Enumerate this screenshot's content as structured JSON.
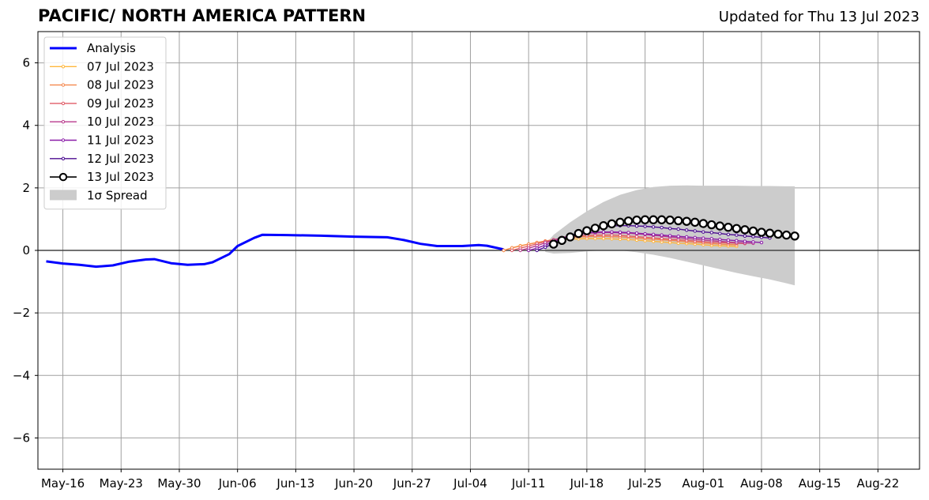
{
  "page": {
    "title": "PACIFIC/ NORTH AMERICA PATTERN",
    "updated": "Updated for Thu 13 Jul 2023"
  },
  "chart_data": {
    "type": "line",
    "title": "PACIFIC/ NORTH AMERICA PATTERN",
    "subtitle": "Updated for Thu 13 Jul 2023",
    "xlim": [
      "2023-05-13",
      "2023-08-27"
    ],
    "ylim": [
      -7,
      7
    ],
    "x_ticks": [
      "2023-05-16",
      "2023-05-23",
      "2023-05-30",
      "2023-06-06",
      "2023-06-13",
      "2023-06-20",
      "2023-06-27",
      "2023-07-04",
      "2023-07-11",
      "2023-07-18",
      "2023-07-25",
      "2023-08-01",
      "2023-08-08",
      "2023-08-15",
      "2023-08-22"
    ],
    "x_tick_labels": [
      "May-16",
      "May-23",
      "May-30",
      "Jun-06",
      "Jun-13",
      "Jun-20",
      "Jun-27",
      "Jul-04",
      "Jul-11",
      "Jul-18",
      "Jul-25",
      "Aug-01",
      "Aug-08",
      "Aug-15",
      "Aug-22"
    ],
    "y_ticks": [
      -6,
      -4,
      -2,
      0,
      2,
      4,
      6
    ],
    "y_tick_labels": [
      "−6",
      "−4",
      "−2",
      "0",
      "2",
      "4",
      "6"
    ],
    "grid": true,
    "legend_position": "top-left",
    "zero_line": true,
    "analysis": {
      "name": "Analysis",
      "color": "#0000ff",
      "x": [
        "2023-05-14",
        "2023-05-16",
        "2023-05-18",
        "2023-05-20",
        "2023-05-22",
        "2023-05-24",
        "2023-05-26",
        "2023-05-27",
        "2023-05-29",
        "2023-05-31",
        "2023-06-02",
        "2023-06-03",
        "2023-06-05",
        "2023-06-06",
        "2023-06-08",
        "2023-06-09",
        "2023-06-12",
        "2023-06-16",
        "2023-06-20",
        "2023-06-24",
        "2023-06-26",
        "2023-06-28",
        "2023-06-30",
        "2023-07-01",
        "2023-07-03",
        "2023-07-05",
        "2023-07-06",
        "2023-07-08"
      ],
      "y": [
        -0.35,
        -0.42,
        -0.46,
        -0.52,
        -0.48,
        -0.36,
        -0.29,
        -0.28,
        -0.41,
        -0.46,
        -0.44,
        -0.38,
        -0.12,
        0.14,
        0.4,
        0.5,
        0.49,
        0.47,
        0.44,
        0.42,
        0.33,
        0.21,
        0.14,
        0.14,
        0.14,
        0.17,
        0.15,
        0.03
      ]
    },
    "forecasts": [
      {
        "name": "07 Jul 2023",
        "color": "#ffb73d",
        "start": "2023-07-08",
        "y": [
          0.0,
          0.08,
          0.15,
          0.2,
          0.25,
          0.29,
          0.32,
          0.34,
          0.36,
          0.37,
          0.38,
          0.38,
          0.38,
          0.37,
          0.36,
          0.35,
          0.33,
          0.31,
          0.29,
          0.27,
          0.25,
          0.23,
          0.22,
          0.2,
          0.18,
          0.16,
          0.15,
          0.14,
          0.13
        ]
      },
      {
        "name": "08 Jul 2023",
        "color": "#f5884e",
        "start": "2023-07-08",
        "y": [
          0.0,
          0.08,
          0.14,
          0.2,
          0.25,
          0.3,
          0.34,
          0.38,
          0.41,
          0.43,
          0.44,
          0.45,
          0.45,
          0.44,
          0.43,
          0.42,
          0.4,
          0.38,
          0.36,
          0.34,
          0.32,
          0.3,
          0.28,
          0.26,
          0.24,
          0.22,
          0.2,
          0.19,
          0.18
        ]
      },
      {
        "name": "09 Jul 2023",
        "color": "#e05c67",
        "start": "2023-07-09",
        "y": [
          0.0,
          0.07,
          0.14,
          0.21,
          0.28,
          0.34,
          0.39,
          0.43,
          0.46,
          0.48,
          0.49,
          0.49,
          0.49,
          0.48,
          0.46,
          0.44,
          0.42,
          0.4,
          0.38,
          0.36,
          0.34,
          0.32,
          0.3,
          0.28,
          0.26,
          0.25,
          0.24,
          0.23,
          0.22
        ]
      },
      {
        "name": "10 Jul 2023",
        "color": "#b83a8c",
        "start": "2023-07-10",
        "y": [
          0.0,
          0.07,
          0.15,
          0.24,
          0.33,
          0.41,
          0.47,
          0.51,
          0.54,
          0.56,
          0.57,
          0.57,
          0.56,
          0.55,
          0.53,
          0.51,
          0.48,
          0.46,
          0.43,
          0.41,
          0.38,
          0.36,
          0.33,
          0.31,
          0.29,
          0.27,
          0.25,
          0.24,
          0.23
        ]
      },
      {
        "name": "11 Jul 2023",
        "color": "#8a1ca8",
        "start": "2023-07-11",
        "y": [
          0.0,
          0.07,
          0.17,
          0.28,
          0.38,
          0.46,
          0.52,
          0.56,
          0.58,
          0.59,
          0.59,
          0.58,
          0.57,
          0.55,
          0.53,
          0.51,
          0.49,
          0.47,
          0.45,
          0.43,
          0.41,
          0.39,
          0.37,
          0.35,
          0.33,
          0.31,
          0.29,
          0.27,
          0.25
        ]
      },
      {
        "name": "12 Jul 2023",
        "color": "#4b0c91",
        "start": "2023-07-12",
        "y": [
          0.0,
          0.1,
          0.22,
          0.35,
          0.47,
          0.57,
          0.65,
          0.71,
          0.75,
          0.78,
          0.79,
          0.79,
          0.78,
          0.77,
          0.75,
          0.73,
          0.7,
          0.68,
          0.65,
          0.62,
          0.59,
          0.57,
          0.54,
          0.51,
          0.49,
          0.46,
          0.44,
          0.42,
          0.4
        ]
      },
      {
        "name": "13 Jul 2023",
        "color": "#000000",
        "start": "2023-07-14",
        "y": [
          0.2,
          0.32,
          0.43,
          0.54,
          0.63,
          0.71,
          0.79,
          0.85,
          0.9,
          0.94,
          0.97,
          0.98,
          0.98,
          0.98,
          0.97,
          0.95,
          0.93,
          0.9,
          0.86,
          0.82,
          0.78,
          0.74,
          0.7,
          0.66,
          0.62,
          0.58,
          0.55,
          0.52,
          0.49,
          0.46
        ]
      }
    ],
    "spread": {
      "name": "1σ Spread",
      "color": "#cccccc",
      "x": [
        "2023-07-13",
        "2023-07-14",
        "2023-07-16",
        "2023-07-18",
        "2023-07-20",
        "2023-07-22",
        "2023-07-24",
        "2023-07-26",
        "2023-07-28",
        "2023-07-30",
        "2023-08-01",
        "2023-08-03",
        "2023-08-05",
        "2023-08-07",
        "2023-08-09",
        "2023-08-11",
        "2023-08-12"
      ],
      "upper": [
        0.2,
        0.5,
        0.9,
        1.25,
        1.55,
        1.78,
        1.93,
        2.03,
        2.07,
        2.08,
        2.07,
        2.07,
        2.07,
        2.06,
        2.06,
        2.05,
        2.05
      ],
      "lower": [
        -0.05,
        -0.1,
        -0.08,
        -0.03,
        0.0,
        0.0,
        -0.06,
        -0.14,
        -0.24,
        -0.36,
        -0.48,
        -0.6,
        -0.72,
        -0.83,
        -0.93,
        -1.05,
        -1.12
      ]
    }
  }
}
